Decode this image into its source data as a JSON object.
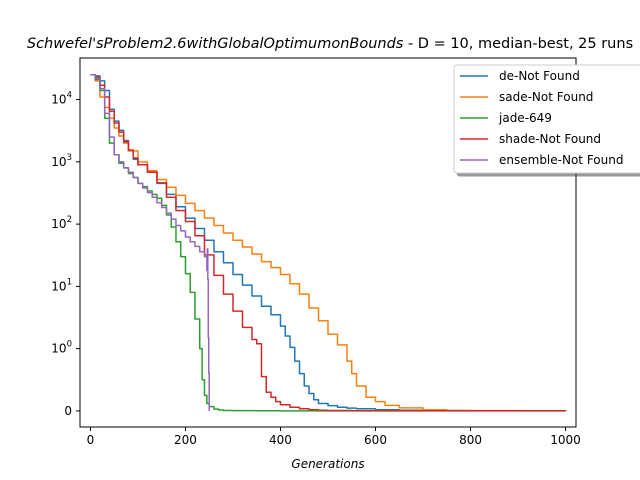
{
  "chart_data": {
    "type": "line",
    "title_italic": "Schwefel'sProblem2.6withGlobalOptimumonBounds",
    "title_rest": "  - D = 10, median-best, 25 runs",
    "xlabel": "Generations",
    "ylabel": "",
    "xlim": [
      -22,
      1022
    ],
    "x_ticks": [
      0,
      200,
      400,
      600,
      800,
      1000
    ],
    "y_scale": "symlog",
    "y_ticks": [
      {
        "value": 0,
        "base": "0",
        "exp": ""
      },
      {
        "value": 1,
        "base": "10",
        "exp": "0"
      },
      {
        "value": 10,
        "base": "10",
        "exp": "1"
      },
      {
        "value": 100,
        "base": "10",
        "exp": "2"
      },
      {
        "value": 1000,
        "base": "10",
        "exp": "3"
      },
      {
        "value": 10000,
        "base": "10",
        "exp": "4"
      }
    ],
    "legend_position": "top-right",
    "series": [
      {
        "name": "de-Not Found",
        "color": "#1f77b4",
        "points": [
          [
            0,
            25000
          ],
          [
            10,
            24000
          ],
          [
            20,
            20000
          ],
          [
            30,
            14000
          ],
          [
            40,
            7000
          ],
          [
            50,
            4500
          ],
          [
            60,
            3200
          ],
          [
            70,
            2200
          ],
          [
            80,
            1500
          ],
          [
            90,
            1100
          ],
          [
            100,
            900
          ],
          [
            120,
            700
          ],
          [
            140,
            450
          ],
          [
            160,
            300
          ],
          [
            180,
            190
          ],
          [
            200,
            125
          ],
          [
            220,
            85
          ],
          [
            240,
            55
          ],
          [
            260,
            36
          ],
          [
            280,
            24
          ],
          [
            300,
            15.5
          ],
          [
            320,
            10.5
          ],
          [
            340,
            7
          ],
          [
            360,
            4.8
          ],
          [
            380,
            3.5
          ],
          [
            400,
            2.3
          ],
          [
            410,
            1.6
          ],
          [
            420,
            1.05
          ],
          [
            430,
            0.8
          ],
          [
            440,
            0.6
          ],
          [
            450,
            0.4
          ],
          [
            460,
            0.28
          ],
          [
            470,
            0.18
          ],
          [
            480,
            0.12
          ],
          [
            500,
            0.085
          ],
          [
            520,
            0.06
          ],
          [
            540,
            0.045
          ],
          [
            560,
            0.035
          ],
          [
            600,
            0.02
          ],
          [
            650,
            0.01
          ],
          [
            700,
            0.005
          ],
          [
            800,
            0.002
          ],
          [
            1000,
            0.001
          ]
        ]
      },
      {
        "name": "sade-Not Found",
        "color": "#ff7f0e",
        "points": [
          [
            0,
            25000
          ],
          [
            10,
            20000
          ],
          [
            20,
            11000
          ],
          [
            30,
            7500
          ],
          [
            40,
            5000
          ],
          [
            50,
            3500
          ],
          [
            60,
            2600
          ],
          [
            70,
            2000
          ],
          [
            80,
            1500
          ],
          [
            100,
            1000
          ],
          [
            120,
            720
          ],
          [
            140,
            520
          ],
          [
            160,
            390
          ],
          [
            180,
            290
          ],
          [
            200,
            215
          ],
          [
            220,
            165
          ],
          [
            240,
            125
          ],
          [
            260,
            95
          ],
          [
            280,
            72
          ],
          [
            300,
            55
          ],
          [
            320,
            43
          ],
          [
            340,
            33
          ],
          [
            360,
            25
          ],
          [
            380,
            20
          ],
          [
            400,
            15.5
          ],
          [
            420,
            11
          ],
          [
            440,
            7.5
          ],
          [
            460,
            4.5
          ],
          [
            480,
            2.8
          ],
          [
            500,
            1.7
          ],
          [
            520,
            1.15
          ],
          [
            540,
            0.8
          ],
          [
            550,
            0.6
          ],
          [
            560,
            0.4
          ],
          [
            580,
            0.22
          ],
          [
            600,
            0.15
          ],
          [
            620,
            0.09
          ],
          [
            650,
            0.05
          ],
          [
            700,
            0.02
          ],
          [
            750,
            0.008
          ],
          [
            800,
            0.004
          ],
          [
            900,
            0.002
          ],
          [
            1000,
            0.001
          ]
        ]
      },
      {
        "name": "jade-649",
        "color": "#2ca02c",
        "points": [
          [
            0,
            25000
          ],
          [
            10,
            21000
          ],
          [
            20,
            14000
          ],
          [
            30,
            5000
          ],
          [
            40,
            2000
          ],
          [
            50,
            1300
          ],
          [
            60,
            950
          ],
          [
            70,
            800
          ],
          [
            80,
            650
          ],
          [
            90,
            560
          ],
          [
            100,
            450
          ],
          [
            110,
            400
          ],
          [
            120,
            340
          ],
          [
            130,
            300
          ],
          [
            140,
            260
          ],
          [
            150,
            200
          ],
          [
            160,
            140
          ],
          [
            170,
            90
          ],
          [
            180,
            52
          ],
          [
            190,
            30
          ],
          [
            200,
            16
          ],
          [
            210,
            8
          ],
          [
            220,
            3
          ],
          [
            230,
            1
          ],
          [
            235,
            0.5
          ],
          [
            240,
            0.25
          ],
          [
            245,
            0.12
          ],
          [
            250,
            0.07
          ],
          [
            260,
            0.03
          ],
          [
            270,
            0.015
          ],
          [
            280,
            0.008
          ],
          [
            300,
            0.004
          ],
          [
            350,
            0.002
          ],
          [
            400,
            0.001
          ],
          [
            1000,
            0
          ]
        ]
      },
      {
        "name": "shade-Not Found",
        "color": "#d62728",
        "points": [
          [
            0,
            25000
          ],
          [
            10,
            23000
          ],
          [
            20,
            17000
          ],
          [
            30,
            11000
          ],
          [
            40,
            6500
          ],
          [
            50,
            4200
          ],
          [
            60,
            3000
          ],
          [
            70,
            2100
          ],
          [
            80,
            1550
          ],
          [
            90,
            1150
          ],
          [
            100,
            900
          ],
          [
            120,
            680
          ],
          [
            140,
            460
          ],
          [
            160,
            270
          ],
          [
            180,
            165
          ],
          [
            200,
            110
          ],
          [
            220,
            65
          ],
          [
            240,
            32
          ],
          [
            260,
            15
          ],
          [
            280,
            7.5
          ],
          [
            300,
            4
          ],
          [
            320,
            2.2
          ],
          [
            340,
            1.4
          ],
          [
            350,
            1.2
          ],
          [
            360,
            0.55
          ],
          [
            370,
            0.3
          ],
          [
            380,
            0.22
          ],
          [
            390,
            0.15
          ],
          [
            400,
            0.1
          ],
          [
            420,
            0.06
          ],
          [
            440,
            0.035
          ],
          [
            460,
            0.02
          ],
          [
            480,
            0.012
          ],
          [
            500,
            0.006
          ],
          [
            550,
            0.003
          ],
          [
            600,
            0.002
          ],
          [
            1000,
            0.001
          ]
        ]
      },
      {
        "name": "ensemble-Not Found",
        "color": "#9467bd",
        "points": [
          [
            0,
            25000
          ],
          [
            10,
            22000
          ],
          [
            20,
            15000
          ],
          [
            30,
            6000
          ],
          [
            40,
            2500
          ],
          [
            50,
            1300
          ],
          [
            60,
            1000
          ],
          [
            70,
            800
          ],
          [
            80,
            680
          ],
          [
            90,
            560
          ],
          [
            100,
            450
          ],
          [
            110,
            380
          ],
          [
            120,
            320
          ],
          [
            130,
            270
          ],
          [
            140,
            220
          ],
          [
            150,
            185
          ],
          [
            160,
            150
          ],
          [
            170,
            120
          ],
          [
            180,
            95
          ],
          [
            190,
            78
          ],
          [
            200,
            62
          ],
          [
            210,
            52
          ],
          [
            220,
            44
          ],
          [
            230,
            36
          ],
          [
            240,
            30
          ],
          [
            245,
            18
          ],
          [
            246,
            40
          ],
          [
            247,
            13
          ],
          [
            248,
            1.5
          ],
          [
            249,
            0.6
          ],
          [
            250,
            0.001
          ]
        ]
      }
    ]
  }
}
